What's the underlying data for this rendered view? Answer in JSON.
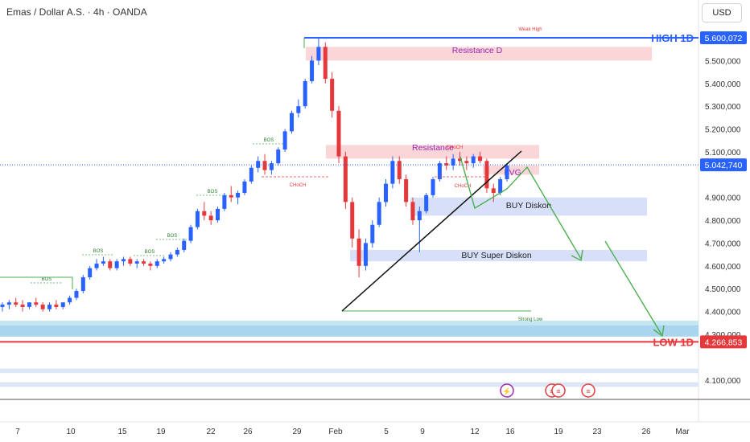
{
  "header": {
    "symbol_title": "Emas / Dollar A.S. · 4h · OANDA",
    "currency_button": "USD"
  },
  "colors": {
    "up": "#2962ff",
    "down": "#e5383b",
    "resistance": "#f8c8cc",
    "support": "#c9d6f5",
    "blue_line": "#2962ff",
    "red_line": "#e5383b",
    "arrow": "#4caf50"
  },
  "chart_data": {
    "type": "candlestick",
    "ylim": [
      4020000,
      5680000
    ],
    "y_ticks": [
      "5.500,000",
      "5.400,000",
      "5.300,000",
      "5.200,000",
      "5.100,000",
      "4.900,000",
      "4.800,000",
      "4.700,000",
      "4.600,000",
      "4.500,000",
      "4.400,000",
      "4.300,000",
      "4.100,000"
    ],
    "x_ticks": [
      "7",
      "10",
      "15",
      "19",
      "22",
      "26",
      "29",
      "Feb",
      "5",
      "9",
      "12",
      "16",
      "19",
      "23",
      "26",
      "Mar"
    ],
    "price_labels": {
      "high": {
        "text": "HIGH 1D",
        "value_text": "5.600,072",
        "value": 5600072
      },
      "current": {
        "value_text": "5.042,740",
        "value": 5042740
      },
      "low": {
        "text": "LOW 1D",
        "value_text": "4.266,853",
        "value": 4266853
      }
    },
    "zones": [
      {
        "label": "Resistance D",
        "from": 5500000,
        "to": 5560000,
        "kind": "resistance"
      },
      {
        "label": "Resistance",
        "from": 5070000,
        "to": 5130000,
        "kind": "resistance"
      },
      {
        "label": "FVG",
        "from": 5000000,
        "to": 5040000,
        "kind": "resistance"
      },
      {
        "label": "BUY Diskon",
        "from": 4820000,
        "to": 4900000,
        "kind": "support"
      },
      {
        "label": "BUY Super Diskon",
        "from": 4620000,
        "to": 4670000,
        "kind": "support"
      }
    ],
    "annotations": [
      "Weak High",
      "Strong Low",
      "BOS",
      "BOS",
      "BOS",
      "BOS",
      "BOS",
      "BOS",
      "CHoCH",
      "CHoCH",
      "CHoCH"
    ],
    "candles": [
      [
        4420000,
        4440000,
        4400000,
        4430000
      ],
      [
        4430000,
        4450000,
        4410000,
        4440000
      ],
      [
        4440000,
        4460000,
        4420000,
        4430000
      ],
      [
        4430000,
        4450000,
        4400000,
        4420000
      ],
      [
        4420000,
        4440000,
        4410000,
        4440000
      ],
      [
        4440000,
        4460000,
        4420000,
        4430000
      ],
      [
        4430000,
        4440000,
        4400000,
        4410000
      ],
      [
        4410000,
        4440000,
        4400000,
        4430000
      ],
      [
        4430000,
        4450000,
        4410000,
        4420000
      ],
      [
        4420000,
        4440000,
        4410000,
        4440000
      ],
      [
        4440000,
        4470000,
        4430000,
        4460000
      ],
      [
        4460000,
        4500000,
        4450000,
        4490000
      ],
      [
        4490000,
        4560000,
        4480000,
        4550000
      ],
      [
        4550000,
        4600000,
        4540000,
        4590000
      ],
      [
        4590000,
        4630000,
        4580000,
        4610000
      ],
      [
        4610000,
        4640000,
        4600000,
        4620000
      ],
      [
        4620000,
        4630000,
        4580000,
        4590000
      ],
      [
        4590000,
        4630000,
        4580000,
        4620000
      ],
      [
        4620000,
        4640000,
        4600000,
        4630000
      ],
      [
        4630000,
        4640000,
        4600000,
        4610000
      ],
      [
        4610000,
        4630000,
        4590000,
        4620000
      ],
      [
        4620000,
        4630000,
        4600000,
        4610000
      ],
      [
        4610000,
        4620000,
        4580000,
        4600000
      ],
      [
        4600000,
        4630000,
        4590000,
        4620000
      ],
      [
        4620000,
        4640000,
        4610000,
        4630000
      ],
      [
        4630000,
        4660000,
        4620000,
        4650000
      ],
      [
        4650000,
        4680000,
        4640000,
        4670000
      ],
      [
        4670000,
        4720000,
        4660000,
        4710000
      ],
      [
        4710000,
        4780000,
        4700000,
        4770000
      ],
      [
        4770000,
        4850000,
        4760000,
        4840000
      ],
      [
        4840000,
        4880000,
        4800000,
        4820000
      ],
      [
        4820000,
        4840000,
        4780000,
        4800000
      ],
      [
        4800000,
        4860000,
        4790000,
        4850000
      ],
      [
        4850000,
        4920000,
        4840000,
        4910000
      ],
      [
        4910000,
        4950000,
        4880000,
        4900000
      ],
      [
        4900000,
        4930000,
        4870000,
        4920000
      ],
      [
        4920000,
        4980000,
        4910000,
        4970000
      ],
      [
        4970000,
        5040000,
        4960000,
        5030000
      ],
      [
        5030000,
        5080000,
        5010000,
        5060000
      ],
      [
        5060000,
        5090000,
        5000000,
        5020000
      ],
      [
        5020000,
        5060000,
        5000000,
        5050000
      ],
      [
        5050000,
        5120000,
        5040000,
        5110000
      ],
      [
        5110000,
        5200000,
        5100000,
        5190000
      ],
      [
        5190000,
        5280000,
        5180000,
        5270000
      ],
      [
        5270000,
        5330000,
        5250000,
        5300000
      ],
      [
        5300000,
        5420000,
        5290000,
        5410000
      ],
      [
        5410000,
        5520000,
        5400000,
        5500000
      ],
      [
        5500000,
        5600000,
        5480000,
        5560000
      ],
      [
        5560000,
        5580000,
        5400000,
        5420000
      ],
      [
        5420000,
        5450000,
        5250000,
        5280000
      ],
      [
        5280000,
        5300000,
        5050000,
        5080000
      ],
      [
        5080000,
        5100000,
        4850000,
        4880000
      ],
      [
        4880000,
        4900000,
        4680000,
        4720000
      ],
      [
        4720000,
        4760000,
        4550000,
        4600000
      ],
      [
        4600000,
        4720000,
        4580000,
        4700000
      ],
      [
        4700000,
        4800000,
        4680000,
        4780000
      ],
      [
        4780000,
        4900000,
        4770000,
        4880000
      ],
      [
        4880000,
        4980000,
        4860000,
        4960000
      ],
      [
        4960000,
        5080000,
        4940000,
        5060000
      ],
      [
        5060000,
        5080000,
        4960000,
        4980000
      ],
      [
        4980000,
        5000000,
        4860000,
        4880000
      ],
      [
        4880000,
        4900000,
        4780000,
        4800000
      ],
      [
        4800000,
        4860000,
        4660000,
        4840000
      ],
      [
        4840000,
        4920000,
        4830000,
        4910000
      ],
      [
        4910000,
        4990000,
        4900000,
        4980000
      ],
      [
        4980000,
        5060000,
        4970000,
        5050000
      ],
      [
        5050000,
        5080000,
        5020000,
        5040000
      ],
      [
        5040000,
        5090000,
        5020000,
        5070000
      ],
      [
        5070000,
        5100000,
        5040000,
        5060000
      ],
      [
        5060000,
        5080000,
        5020000,
        5050000
      ],
      [
        5050000,
        5090000,
        5030000,
        5080000
      ],
      [
        5080000,
        5100000,
        5050000,
        5060000
      ],
      [
        5060000,
        5070000,
        4920000,
        4940000
      ],
      [
        4940000,
        4960000,
        4880000,
        4920000
      ],
      [
        4920000,
        4990000,
        4910000,
        4980000
      ],
      [
        4980000,
        5050000,
        4970000,
        5040000
      ]
    ]
  }
}
